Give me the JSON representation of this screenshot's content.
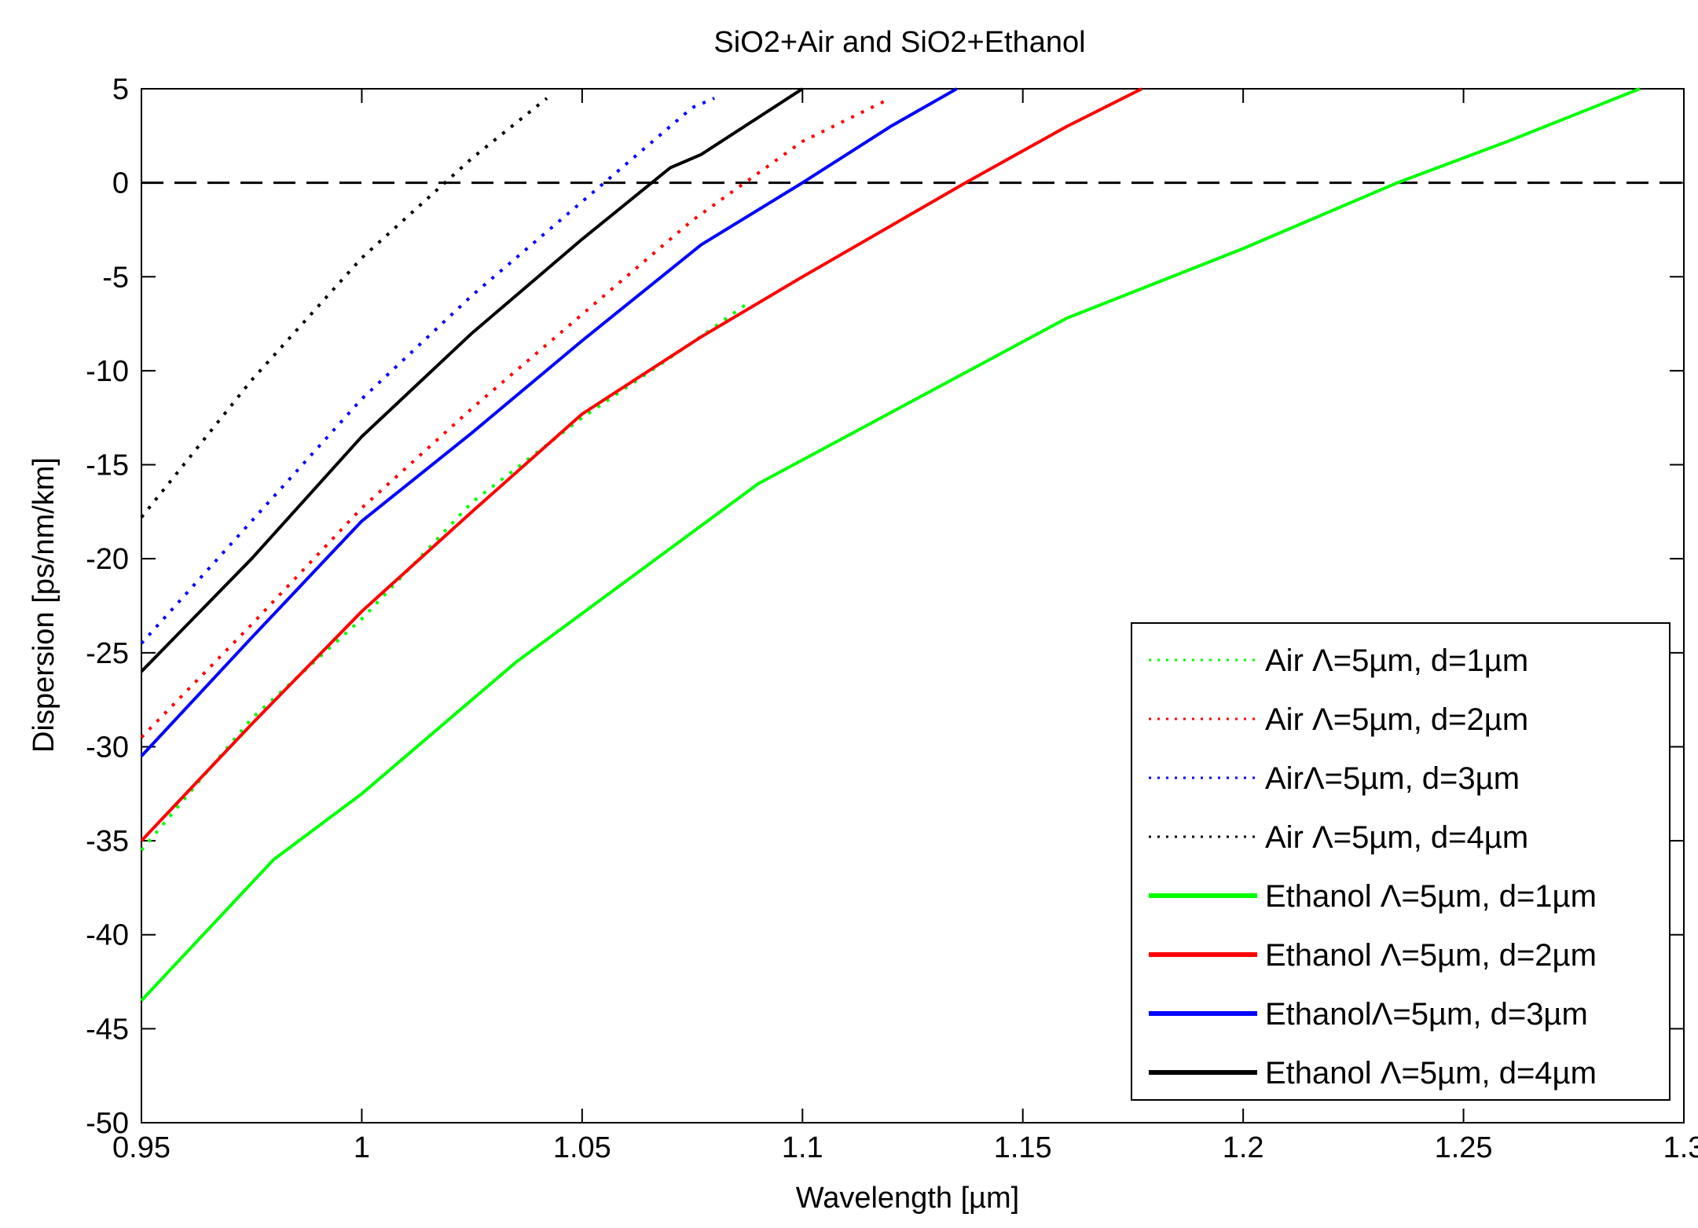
{
  "chart_data": {
    "type": "line",
    "title": "SiO2+Air and SiO2+Ethanol",
    "xlabel": "Wavelength [µm]",
    "ylabel": "Dispersion [ps/nm/km]",
    "xlim": [
      0.95,
      1.3
    ],
    "ylim": [
      -50,
      5
    ],
    "xticks": [
      0.95,
      1,
      1.05,
      1.1,
      1.15,
      1.2,
      1.25,
      1.3
    ],
    "xtick_labels": [
      "0.95",
      "1",
      "1.05",
      "1.1",
      "1.15",
      "1.2",
      "1.25",
      "1.3"
    ],
    "yticks": [
      5,
      0,
      -5,
      -10,
      -15,
      -20,
      -25,
      -30,
      -35,
      -40,
      -45,
      -50
    ],
    "ytick_labels": [
      "5",
      "0",
      "-5",
      "-10",
      "-15",
      "-20",
      "-25",
      "-30",
      "-35",
      "-40",
      "-45",
      "-50"
    ],
    "grid": false,
    "reference_line": {
      "y": 0,
      "style": "dashed",
      "color": "#000000"
    },
    "legend_position": "bottom-right",
    "series": [
      {
        "name": "Air Λ=5µm, d=1µm",
        "style": "dotted",
        "color": "#00ff00",
        "x": [
          0.95,
          0.975,
          1.0,
          1.025,
          1.05,
          1.075,
          1.087
        ],
        "y": [
          -35.5,
          -28.5,
          -23.2,
          -17.0,
          -12.5,
          -8.5,
          -6.5
        ]
      },
      {
        "name": "Air Λ=5µm, d=2µm",
        "style": "dotted",
        "color": "#ff0000",
        "x": [
          0.95,
          0.975,
          1.0,
          1.025,
          1.05,
          1.075,
          1.1,
          1.12
        ],
        "y": [
          -29.5,
          -23.5,
          -17.3,
          -12.0,
          -7.0,
          -2.0,
          2.2,
          4.5
        ]
      },
      {
        "name": "AirΛ=5µm, d=3µm",
        "style": "dotted",
        "color": "#0000ff",
        "x": [
          0.95,
          0.975,
          1.0,
          1.025,
          1.05,
          1.075,
          1.08
        ],
        "y": [
          -24.5,
          -18.0,
          -11.5,
          -6.0,
          -1.0,
          4.0,
          4.5
        ]
      },
      {
        "name": "Air Λ=5µm, d=4µm",
        "style": "dotted",
        "color": "#000000",
        "x": [
          0.95,
          0.975,
          1.0,
          1.025,
          1.042
        ],
        "y": [
          -17.8,
          -10.5,
          -4.0,
          1.3,
          4.5
        ]
      },
      {
        "name": "Ethanol Λ=5µm, d=1µm",
        "style": "solid",
        "color": "#00ff00",
        "x": [
          0.95,
          0.98,
          1.0,
          1.035,
          1.09,
          1.16,
          1.2,
          1.235,
          1.26,
          1.29
        ],
        "y": [
          -43.5,
          -36.0,
          -32.5,
          -25.5,
          -16.0,
          -7.2,
          -3.5,
          0.0,
          2.2,
          5.0
        ]
      },
      {
        "name": "Ethanol Λ=5µm, d=2µm",
        "style": "solid",
        "color": "#ff0000",
        "x": [
          0.95,
          0.975,
          1.0,
          1.025,
          1.05,
          1.077,
          1.1,
          1.137,
          1.16,
          1.177
        ],
        "y": [
          -35.0,
          -28.8,
          -22.8,
          -17.5,
          -12.3,
          -8.2,
          -5.0,
          0.0,
          3.0,
          5.0
        ]
      },
      {
        "name": "EthanolΛ=5µm, d=3µm",
        "style": "solid",
        "color": "#0000ff",
        "x": [
          0.95,
          0.975,
          1.0,
          1.025,
          1.05,
          1.077,
          1.1,
          1.12,
          1.135
        ],
        "y": [
          -30.5,
          -24.2,
          -18.0,
          -13.3,
          -8.4,
          -3.3,
          0.0,
          3.0,
          5.0
        ]
      },
      {
        "name": "Ethanol Λ=5µm, d=4µm",
        "style": "solid",
        "color": "#000000",
        "x": [
          0.95,
          0.975,
          1.0,
          1.025,
          1.05,
          1.07,
          1.077,
          1.1
        ],
        "y": [
          -26.0,
          -20.0,
          -13.5,
          -8.0,
          -3.0,
          0.8,
          1.5,
          5.0
        ]
      }
    ]
  }
}
